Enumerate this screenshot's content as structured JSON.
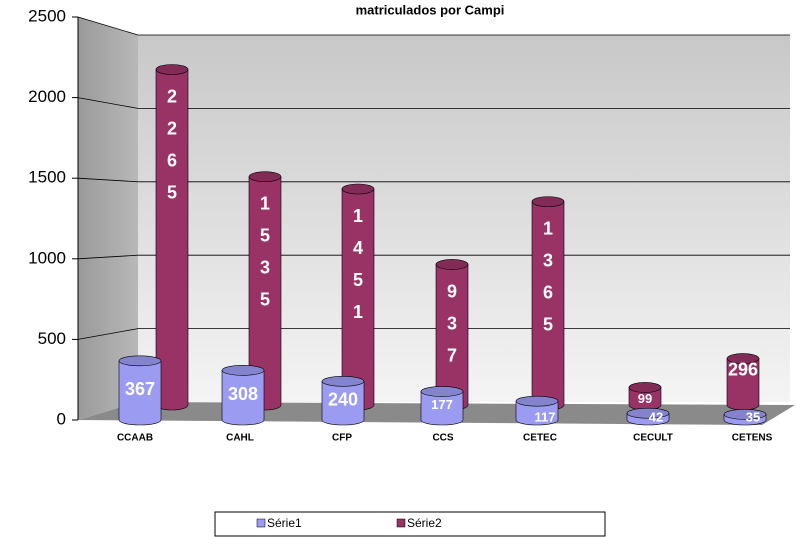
{
  "chart_data": {
    "type": "bar3d",
    "title": "matriculados por Campi",
    "categories": [
      "CCAAB",
      "CAHL",
      "CFP",
      "CCS",
      "CETEC",
      "CECULT",
      "CETENS"
    ],
    "series": [
      {
        "name": "Série1",
        "color": "#9b9bf2",
        "values": [
          367,
          308,
          240,
          177,
          117,
          42,
          35
        ]
      },
      {
        "name": "Série2",
        "color": "#993366",
        "values": [
          2265,
          1535,
          1451,
          937,
          1365,
          99,
          296
        ]
      }
    ],
    "ylim": [
      0,
      2500
    ],
    "yticks": [
      0,
      500,
      1000,
      1500,
      2000,
      2500
    ],
    "grid": true,
    "legend": "bottom"
  }
}
